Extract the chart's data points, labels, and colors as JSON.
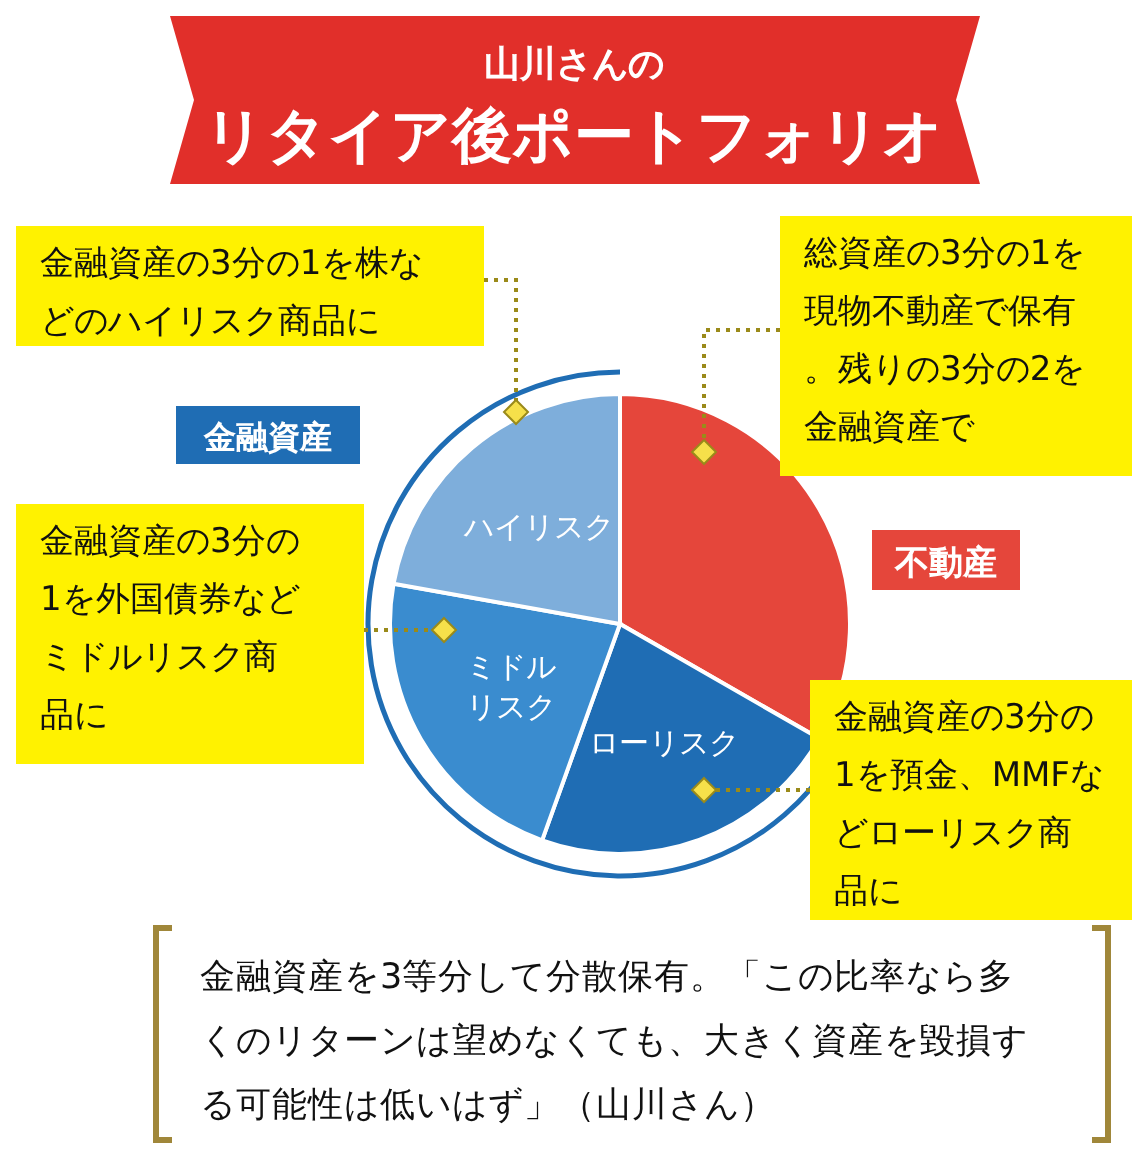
{
  "chart_data": {
    "type": "pie",
    "title": "リタイア後ポートフォリオ",
    "subtitle": "山川さんの",
    "categories": [
      "不動産",
      "ローリスク",
      "ミドルリスク",
      "ハイリスク"
    ],
    "values": [
      33.3,
      22.2,
      22.3,
      22.2
    ],
    "colors": [
      "#e5463b",
      "#1f6db4",
      "#3a8ccf",
      "#7eaedb"
    ],
    "annotations": [
      "金融資産",
      "金融資産の3分の1を株などのハイリスク商品に",
      "総資産の3分の1を現物不動産で保有。残りの3分の2を金融資産で",
      "金融資産の3分の1を外国債券などミドルリスク商品に",
      "金融資産の3分の1を預金、MMFなどローリスク商品に",
      "金融資産を3等分して分散保有。「この比率なら多くのリターンは望めなくても、大きく資産を毀損する可能性は低いはず」（山川さん）"
    ]
  }
}
